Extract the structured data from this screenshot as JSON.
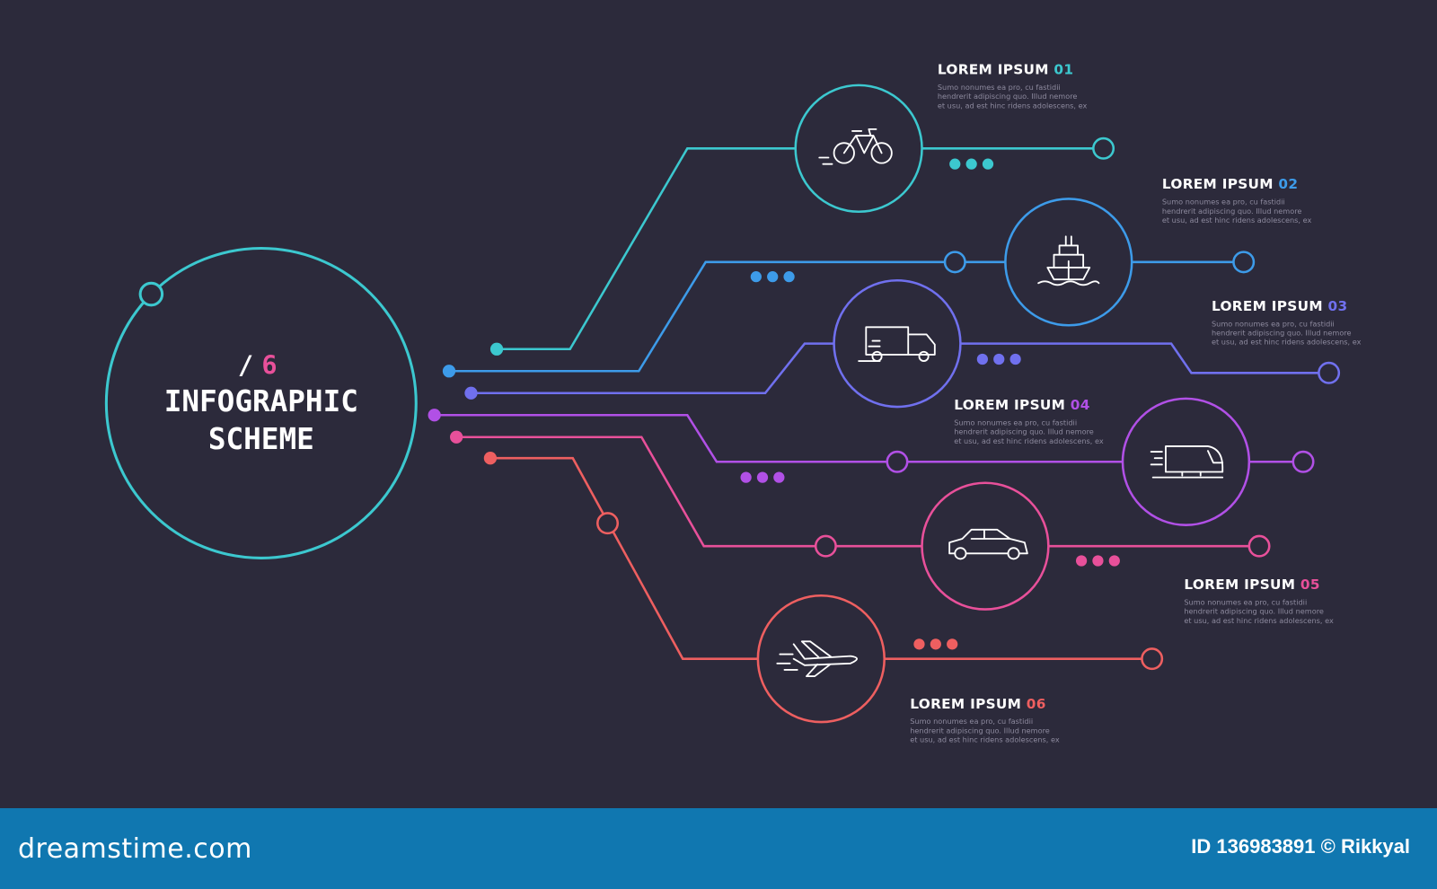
{
  "colors": {
    "background": "#2c2a3b",
    "footer": "#1077b0",
    "teal": "#3cc8cf",
    "blue": "#3d9be9",
    "indigo": "#7070ee",
    "purple": "#b150e6",
    "pink": "#e8509a",
    "coral": "#ee5f60"
  },
  "title": {
    "slash": "/",
    "count": "6",
    "line1": "INFOGRAPHIC",
    "line2": "SCHEME"
  },
  "items": [
    {
      "label": "LOREM IPSUM",
      "num": "01",
      "color": "#3cc8cf",
      "icon": "bicycle-icon",
      "body": [
        "Sumo nonumes ea pro, cu fastidii",
        "hendrerit adipiscing quo. Illud nemore",
        "et usu, ad est hinc ridens adolescens, ex"
      ]
    },
    {
      "label": "LOREM IPSUM",
      "num": "02",
      "color": "#3d9be9",
      "icon": "ship-icon",
      "body": [
        "Sumo nonumes ea pro, cu fastidii",
        "hendrerit adipiscing quo. Illud nemore",
        "et usu, ad est hinc ridens adolescens, ex"
      ]
    },
    {
      "label": "LOREM IPSUM",
      "num": "03",
      "color": "#7070ee",
      "icon": "truck-icon",
      "body": [
        "Sumo nonumes ea pro, cu fastidii",
        "hendrerit adipiscing quo. Illud nemore",
        "et usu, ad est hinc ridens adolescens, ex"
      ]
    },
    {
      "label": "LOREM IPSUM",
      "num": "04",
      "color": "#b150e6",
      "icon": "train-icon",
      "body": [
        "Sumo nonumes ea pro, cu fastidii",
        "hendrerit adipiscing quo. Illud nemore",
        "et usu, ad est hinc ridens adolescens, ex"
      ]
    },
    {
      "label": "LOREM IPSUM",
      "num": "05",
      "color": "#e8509a",
      "icon": "car-icon",
      "body": [
        "Sumo nonumes ea pro, cu fastidii",
        "hendrerit adipiscing quo. Illud nemore",
        "et usu, ad est hinc ridens adolescens, ex"
      ]
    },
    {
      "label": "LOREM IPSUM",
      "num": "06",
      "color": "#ee5f60",
      "icon": "airplane-icon",
      "body": [
        "Sumo nonumes ea pro, cu fastidii",
        "hendrerit adipiscing quo. Illud nemore",
        "et usu, ad est hinc ridens adolescens, ex"
      ]
    }
  ],
  "footer": {
    "logo": "dreamstime.com",
    "image_id": "ID 136983891 © Rikkyal"
  }
}
